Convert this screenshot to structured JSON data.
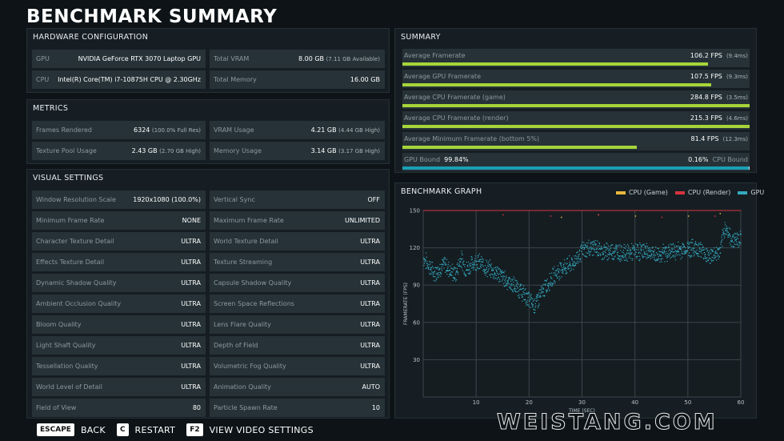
{
  "title": "BENCHMARK SUMMARY",
  "hardware": {
    "heading": "HARDWARE CONFIGURATION",
    "rows": [
      {
        "label": "GPU",
        "value": "NVIDIA GeForce RTX 3070 Laptop GPU",
        "sub": ""
      },
      {
        "label": "Total VRAM",
        "value": "8.00 GB",
        "sub": "(7.11 GB Available)"
      },
      {
        "label": "CPU",
        "value": "Intel(R) Core(TM) i7-10875H CPU @ 2.30GHz",
        "sub": ""
      },
      {
        "label": "Total Memory",
        "value": "16.00 GB",
        "sub": ""
      }
    ]
  },
  "metrics": {
    "heading": "METRICS",
    "rows": [
      {
        "label": "Frames Rendered",
        "value": "6324",
        "sub": "(100.0% Full Res)"
      },
      {
        "label": "VRAM Usage",
        "value": "4.21 GB",
        "sub": "(4.44 GB High)"
      },
      {
        "label": "Texture Pool Usage",
        "value": "2.43 GB",
        "sub": "(2.70 GB High)"
      },
      {
        "label": "Memory Usage",
        "value": "3.14 GB",
        "sub": "(3.17 GB High)"
      }
    ]
  },
  "visual": {
    "heading": "VISUAL SETTINGS",
    "rows": [
      {
        "label": "Window Resolution Scale",
        "value": "1920x1080 (100.0%)"
      },
      {
        "label": "Vertical Sync",
        "value": "OFF"
      },
      {
        "label": "Minimum Frame Rate",
        "value": "NONE"
      },
      {
        "label": "Maximum Frame Rate",
        "value": "UNLIMITED"
      },
      {
        "label": "Character Texture Detail",
        "value": "ULTRA"
      },
      {
        "label": "World Texture Detail",
        "value": "ULTRA"
      },
      {
        "label": "Effects Texture Detail",
        "value": "ULTRA"
      },
      {
        "label": "Texture Streaming",
        "value": "ULTRA"
      },
      {
        "label": "Dynamic Shadow Quality",
        "value": "ULTRA"
      },
      {
        "label": "Capsule Shadow Quality",
        "value": "ULTRA"
      },
      {
        "label": "Ambient Occlusion Quality",
        "value": "ULTRA"
      },
      {
        "label": "Screen Space Reflections",
        "value": "ULTRA"
      },
      {
        "label": "Bloom Quality",
        "value": "ULTRA"
      },
      {
        "label": "Lens Flare Quality",
        "value": "ULTRA"
      },
      {
        "label": "Light Shaft Quality",
        "value": "ULTRA"
      },
      {
        "label": "Depth of Field",
        "value": "ULTRA"
      },
      {
        "label": "Tessellation Quality",
        "value": "ULTRA"
      },
      {
        "label": "Volumetric Fog Quality",
        "value": "ULTRA"
      },
      {
        "label": "World Level of Detail",
        "value": "ULTRA"
      },
      {
        "label": "Animation Quality",
        "value": "AUTO"
      },
      {
        "label": "Field of View",
        "value": "80"
      },
      {
        "label": "Particle Spawn Rate",
        "value": "10"
      }
    ]
  },
  "summary": {
    "heading": "SUMMARY",
    "rows": [
      {
        "label": "Average Framerate",
        "value": "106.2 FPS",
        "sub": "(9.4ms)",
        "fill": 0.88,
        "color": "#a6d43a"
      },
      {
        "label": "Average GPU Framerate",
        "value": "107.5 FPS",
        "sub": "(9.3ms)",
        "fill": 0.89,
        "color": "#a6d43a"
      },
      {
        "label": "Average CPU Framerate (game)",
        "value": "284.8 FPS",
        "sub": "(3.5ms)",
        "fill": 1.0,
        "color": "#a6d43a"
      },
      {
        "label": "Average CPU Framerate (render)",
        "value": "215.3 FPS",
        "sub": "(4.6ms)",
        "fill": 1.0,
        "color": "#a6d43a"
      },
      {
        "label": "Average Minimum Framerate (bottom 5%)",
        "value": "81.4 FPS",
        "sub": "(12.3ms)",
        "fill": 0.675,
        "color": "#a6d43a"
      }
    ],
    "bound": {
      "gpu_label": "GPU Bound",
      "gpu_value": "99.84%",
      "cpu_value": "0.16%",
      "cpu_label": "CPU Bound",
      "fill": 0.9984,
      "gpu_color": "#1aa0b4",
      "cpu_color": "#d6d6d6"
    }
  },
  "graph": {
    "heading": "BENCHMARK GRAPH",
    "legend": [
      {
        "name": "CPU (Game)",
        "color": "#e8b93c"
      },
      {
        "name": "CPU (Render)",
        "color": "#d6343d"
      },
      {
        "name": "GPU",
        "color": "#34a9c0"
      }
    ]
  },
  "chart_data": {
    "type": "scatter",
    "xlabel": "TIME (SEC)",
    "ylabel": "FRAMERATE (FPS)",
    "xlim": [
      0,
      60
    ],
    "ylim": [
      0,
      150
    ],
    "xticks": [
      10,
      20,
      30,
      40,
      50,
      60
    ],
    "yticks": [
      30,
      60,
      90,
      120,
      150
    ],
    "grid": true,
    "legend_position": "top-right",
    "series": [
      {
        "name": "GPU",
        "x": [
          0,
          2,
          4,
          6,
          7,
          8,
          10,
          12,
          14,
          16,
          18,
          20,
          21,
          22,
          24,
          26,
          28,
          30,
          32,
          34,
          36,
          38,
          40,
          42,
          44,
          46,
          48,
          50,
          52,
          54,
          56,
          57,
          58,
          60
        ],
        "y": [
          112,
          100,
          107,
          98,
          112,
          103,
          110,
          104,
          100,
          93,
          87,
          78,
          74,
          82,
          95,
          104,
          107,
          118,
          121,
          117,
          118,
          116,
          117,
          118,
          114,
          117,
          118,
          120,
          120,
          113,
          117,
          138,
          127,
          128
        ]
      },
      {
        "name": "CPU (Game)",
        "x": [
          26,
          33,
          40,
          50,
          56
        ],
        "y": [
          145,
          147,
          146,
          146,
          148
        ]
      },
      {
        "name": "CPU (Render)",
        "x": [
          15,
          24,
          33,
          45,
          55
        ],
        "y": [
          147,
          146,
          147,
          145,
          146
        ]
      }
    ]
  },
  "footer": [
    {
      "key": "ESCAPE",
      "action": "BACK"
    },
    {
      "key": "C",
      "action": "RESTART"
    },
    {
      "key": "F2",
      "action": "VIEW VIDEO SETTINGS"
    }
  ],
  "watermark": "WEISTANG.COM"
}
